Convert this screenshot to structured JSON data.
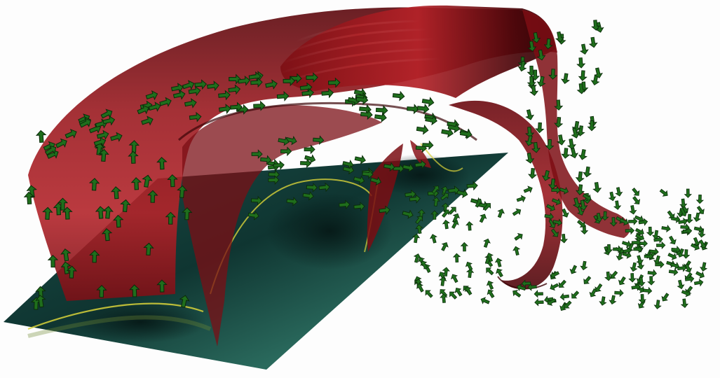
{
  "scene": {
    "subject": "",
    "colors": {
      "background": "#fdfdfd",
      "surface_dark": "#3d0508",
      "surface_mid": "#8e1418",
      "surface_light": "#c8262b",
      "plane_dark": "#0c2a26",
      "plane_mid": "#1f5b52",
      "plane_highlight": "#c9c43a",
      "arrow_fill": "#1f6e1c",
      "arrow_stroke": "#0b2b0a"
    },
    "icons": [
      "vector-arrow-icon"
    ]
  }
}
